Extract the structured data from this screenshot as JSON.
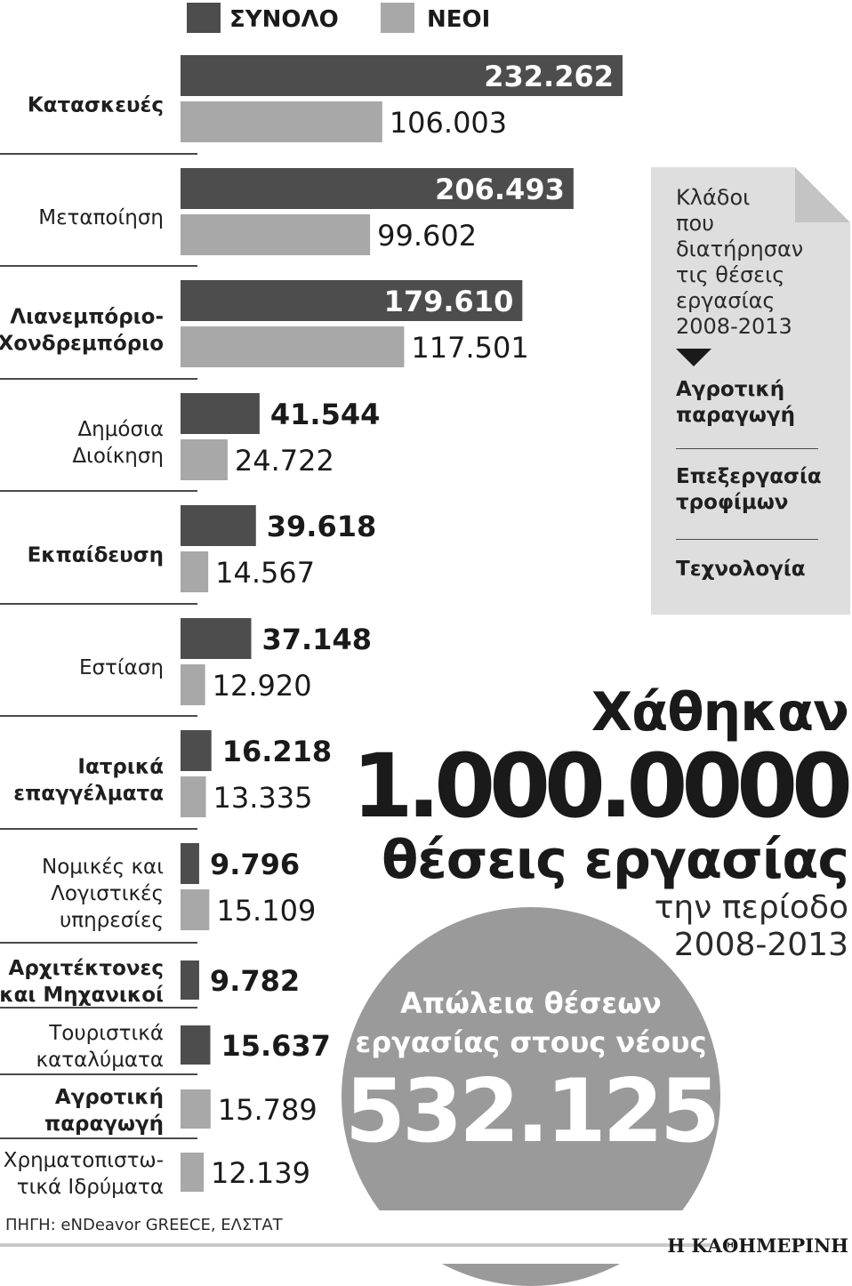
{
  "chart_data": {
    "type": "bar",
    "orientation": "horizontal",
    "categories": [
      "Κατασκευές",
      "Μεταποίηση",
      "Λιανεμπόριο-\nΧονδρεμπόριο",
      "Δημόσια\nΔιοίκηση",
      "Εκπαίδευση",
      "Εστίαση",
      "Ιατρικά\nεπαγγέλματα",
      "Νομικές και\nΛογιστικές\nυπηρεσίες",
      "Αρχιτέκτονες\nκαι Μηχανικοί",
      "Τουριστικά\nκαταλύματα",
      "Αγροτική\nπαραγωγή",
      "Χρηματοπιστω-\nτικά Ιδρύματα"
    ],
    "category_bold": [
      true,
      false,
      true,
      false,
      true,
      false,
      true,
      false,
      true,
      false,
      true,
      false
    ],
    "series": [
      {
        "name": "ΣΥΝΟΛΟ",
        "color": "#4d4d4d",
        "values": [
          232262,
          206493,
          179610,
          41544,
          39618,
          37148,
          16218,
          9796,
          9782,
          15637,
          null,
          null
        ],
        "labels": [
          "232.262",
          "206.493",
          "179.610",
          "41.544",
          "39.618",
          "37.148",
          "16.218",
          "9.796",
          "9.782",
          "15.637",
          "",
          ""
        ]
      },
      {
        "name": "ΝΕΟΙ",
        "color": "#a8a8a8",
        "values": [
          106003,
          99602,
          117501,
          24722,
          14567,
          12920,
          13335,
          15109,
          null,
          null,
          15789,
          12139
        ],
        "labels": [
          "106.003",
          "99.602",
          "117.501",
          "24.722",
          "14.567",
          "12.920",
          "13.335",
          "15.109",
          "",
          "",
          "15.789",
          "12.139"
        ]
      }
    ],
    "legend_position": "top-left",
    "grid": false
  },
  "note": {
    "intro": "Κλάδοι\nπου\nδιατήρησαν\nτις θέσεις\nεργασίας\n2008-2013",
    "items": [
      "Αγροτική\nπαραγωγή",
      "Επεξεργασία\nτροφίμων",
      "Τεχνολογία"
    ]
  },
  "headline": {
    "line1": "Χάθηκαν",
    "line2": "1.000.0000",
    "line3": "θέσεις εργασίας",
    "line4": "την περίοδο\n2008-2013"
  },
  "circle": {
    "label": "Απώλεια θέσεων\nεργασίας στους νέους",
    "value": "532.125"
  },
  "source": "ΠΗΓΗ: eNDeavor GREECE, ΕΛΣΤΑΤ",
  "brand": "Η ΚΑΘΗΜΕΡΙΝΗ",
  "colors": {
    "total": "#4d4d4d",
    "young": "#a8a8a8",
    "note_bg": "#dedede",
    "circle": "#9a9a9a"
  }
}
